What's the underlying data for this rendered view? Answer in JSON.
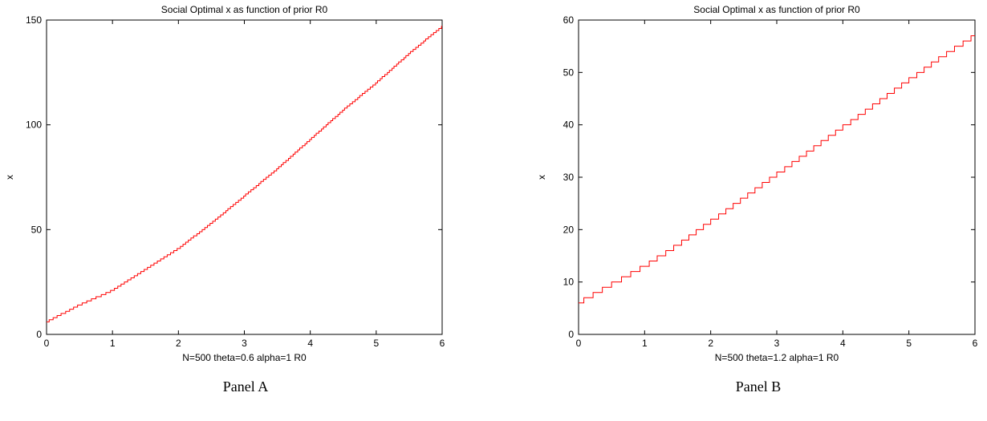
{
  "chart_data": [
    {
      "type": "line",
      "title": "Social Optimal x as function of prior R0",
      "xlabel": "N=500  theta=0.6  alpha=1        R0",
      "ylabel": "x",
      "xlim": [
        0,
        6
      ],
      "ylim": [
        0,
        150
      ],
      "xticks": [
        "0",
        "1",
        "2",
        "3",
        "4",
        "5",
        "6"
      ],
      "yticks": [
        "0",
        "50",
        "100",
        "150"
      ],
      "grid": false,
      "line_color": "#ff0000",
      "step": true,
      "series": [
        {
          "x": [
            0,
            0.5,
            1,
            1.5,
            2,
            2.5,
            3,
            3.5,
            4,
            4.5,
            5,
            5.5,
            6
          ],
          "values": [
            6,
            14,
            21,
            31,
            41,
            53,
            66,
            79,
            93,
            107,
            120,
            134,
            147
          ]
        }
      ],
      "caption": "Panel A"
    },
    {
      "type": "line",
      "title": "Social Optimal x as function of prior R0",
      "xlabel": "N=500  theta=1.2  alpha=1        R0",
      "ylabel": "x",
      "xlim": [
        0,
        6
      ],
      "ylim": [
        0,
        60
      ],
      "xticks": [
        "0",
        "1",
        "2",
        "3",
        "4",
        "5",
        "6"
      ],
      "yticks": [
        "0",
        "10",
        "20",
        "30",
        "40",
        "50",
        "60"
      ],
      "grid": false,
      "line_color": "#ff0000",
      "step": true,
      "series": [
        {
          "x": [
            0,
            0.5,
            1,
            1.5,
            2,
            2.5,
            3,
            3.5,
            4,
            4.5,
            5,
            5.5,
            6
          ],
          "values": [
            6,
            9.5,
            13,
            17,
            21.5,
            26,
            30.5,
            35,
            39.5,
            44,
            48.5,
            53,
            57
          ]
        }
      ],
      "caption": "Panel B"
    }
  ]
}
